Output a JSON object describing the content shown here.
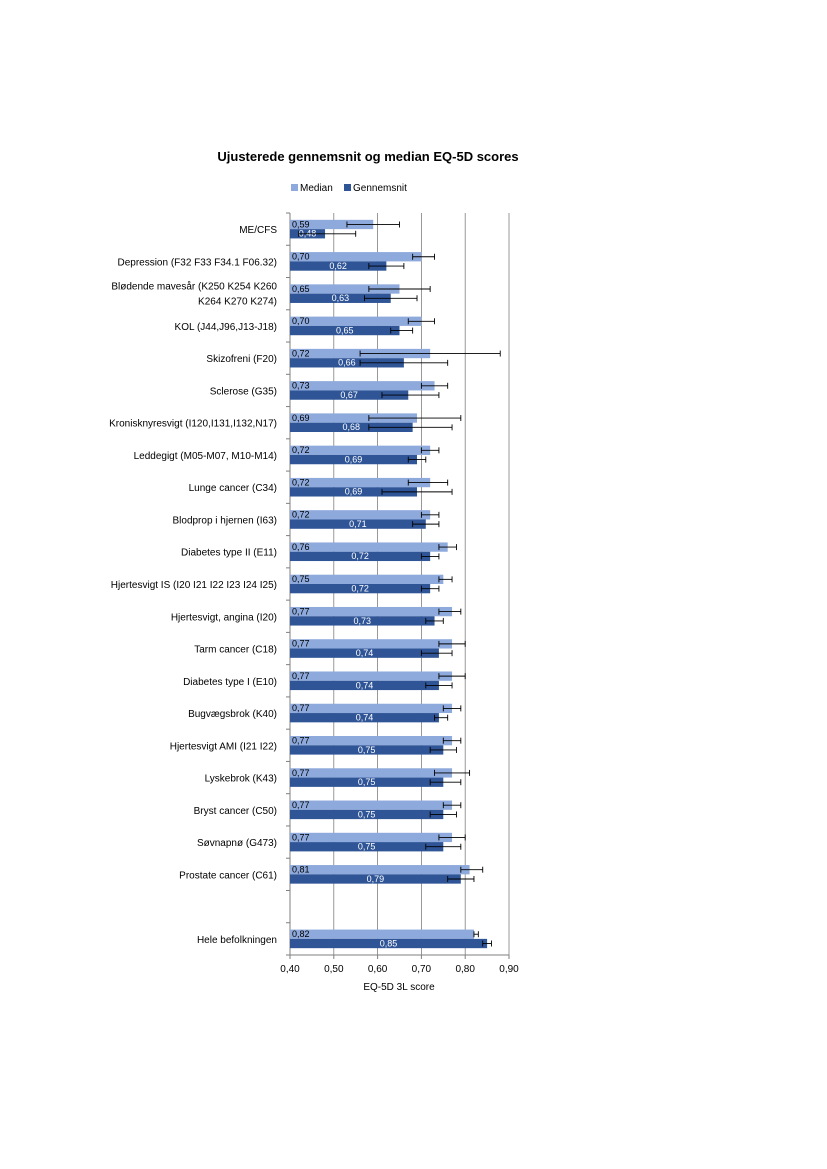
{
  "chart_data": {
    "type": "bar",
    "orientation": "horizontal",
    "title": "Ujusterede gennemsnit og median EQ-5D scores",
    "xlabel": "EQ-5D 3L score",
    "xlim": [
      0.4,
      0.9
    ],
    "xticks": [
      "0,40",
      "0,50",
      "0,60",
      "0,70",
      "0,80",
      "0,90"
    ],
    "grid": "vertical",
    "legend_position": "top",
    "colors": {
      "median": "#8ea9db",
      "gennemsnit": "#2f5597",
      "error_bar": "#000000"
    },
    "categories": [
      [
        "ME/CFS"
      ],
      [
        "Depression (F32 F33 F34.1 F06.32)"
      ],
      [
        "Blødende mavesår (K250 K254 K260",
        "K264 K270 K274)"
      ],
      [
        "KOL (J44,J96,J13-J18)"
      ],
      [
        "Skizofreni (F20)"
      ],
      [
        "Sclerose (G35)"
      ],
      [
        "Kronisknyresvigt (I120,I131,I132,N17)"
      ],
      [
        "Leddegigt (M05-M07, M10-M14)"
      ],
      [
        "Lunge cancer (C34)"
      ],
      [
        "Blodprop i hjernen (I63)"
      ],
      [
        "Diabetes type II (E11)"
      ],
      [
        "Hjertesvigt IS (I20 I21 I22 I23 I24 I25)"
      ],
      [
        "Hjertesvigt, angina (I20)"
      ],
      [
        "Tarm cancer (C18)"
      ],
      [
        "Diabetes type I (E10)"
      ],
      [
        "Bugvægsbrok (K40)"
      ],
      [
        "Hjertesvigt AMI  (I21 I22)"
      ],
      [
        "Lyskebrok (K43)"
      ],
      [
        "Bryst cancer (C50)"
      ],
      [
        "Søvnapnø  (G473)"
      ],
      [
        "Prostate cancer (C61)"
      ],
      [
        ""
      ],
      [
        "Hele befolkningen"
      ]
    ],
    "series": [
      {
        "name": "Median",
        "key": "median",
        "values": [
          0.59,
          0.7,
          0.65,
          0.7,
          0.72,
          0.73,
          0.69,
          0.72,
          0.72,
          0.72,
          0.76,
          0.75,
          0.77,
          0.77,
          0.77,
          0.77,
          0.77,
          0.77,
          0.77,
          0.77,
          0.81,
          null,
          0.82
        ],
        "labels": [
          "0,59",
          "0,70",
          "0,65",
          "0,70",
          "0,72",
          "0,73",
          "0,69",
          "0,72",
          "0,72",
          "0,72",
          "0,76",
          "0,75",
          "0,77",
          "0,77",
          "0,77",
          "0,77",
          "0,77",
          "0,77",
          "0,77",
          "0,77",
          "0,81",
          "",
          "0,82"
        ],
        "error_low": [
          0.53,
          0.68,
          0.58,
          0.67,
          0.56,
          0.7,
          0.58,
          0.7,
          0.67,
          0.7,
          0.74,
          0.74,
          0.74,
          0.74,
          0.74,
          0.75,
          0.75,
          0.73,
          0.75,
          0.74,
          0.79,
          null,
          0.82
        ],
        "error_high": [
          0.65,
          0.73,
          0.72,
          0.73,
          0.88,
          0.76,
          0.79,
          0.74,
          0.76,
          0.74,
          0.78,
          0.77,
          0.79,
          0.8,
          0.8,
          0.79,
          0.79,
          0.81,
          0.79,
          0.8,
          0.84,
          null,
          0.83
        ]
      },
      {
        "name": "Gennemsnit",
        "key": "gennemsnit",
        "values": [
          0.48,
          0.62,
          0.63,
          0.65,
          0.66,
          0.67,
          0.68,
          0.69,
          0.69,
          0.71,
          0.72,
          0.72,
          0.73,
          0.74,
          0.74,
          0.74,
          0.75,
          0.75,
          0.75,
          0.75,
          0.79,
          null,
          0.85
        ],
        "labels": [
          "0,48",
          "0,62",
          "0,63",
          "0,65",
          "0,66",
          "0,67",
          "0,68",
          "0,69",
          "0,69",
          "0,71",
          "0,72",
          "0,72",
          "0,73",
          "0,74",
          "0,74",
          "0,74",
          "0,75",
          "0,75",
          "0,75",
          "0,75",
          "0,79",
          "",
          "0,85"
        ],
        "error_low": [
          0.42,
          0.58,
          0.57,
          0.63,
          0.56,
          0.61,
          0.58,
          0.67,
          0.61,
          0.68,
          0.7,
          0.7,
          0.71,
          0.7,
          0.71,
          0.73,
          0.72,
          0.72,
          0.72,
          0.71,
          0.76,
          null,
          0.84
        ],
        "error_high": [
          0.55,
          0.66,
          0.69,
          0.68,
          0.76,
          0.74,
          0.77,
          0.71,
          0.77,
          0.74,
          0.74,
          0.74,
          0.75,
          0.77,
          0.77,
          0.76,
          0.78,
          0.79,
          0.78,
          0.79,
          0.82,
          null,
          0.86
        ]
      }
    ]
  }
}
